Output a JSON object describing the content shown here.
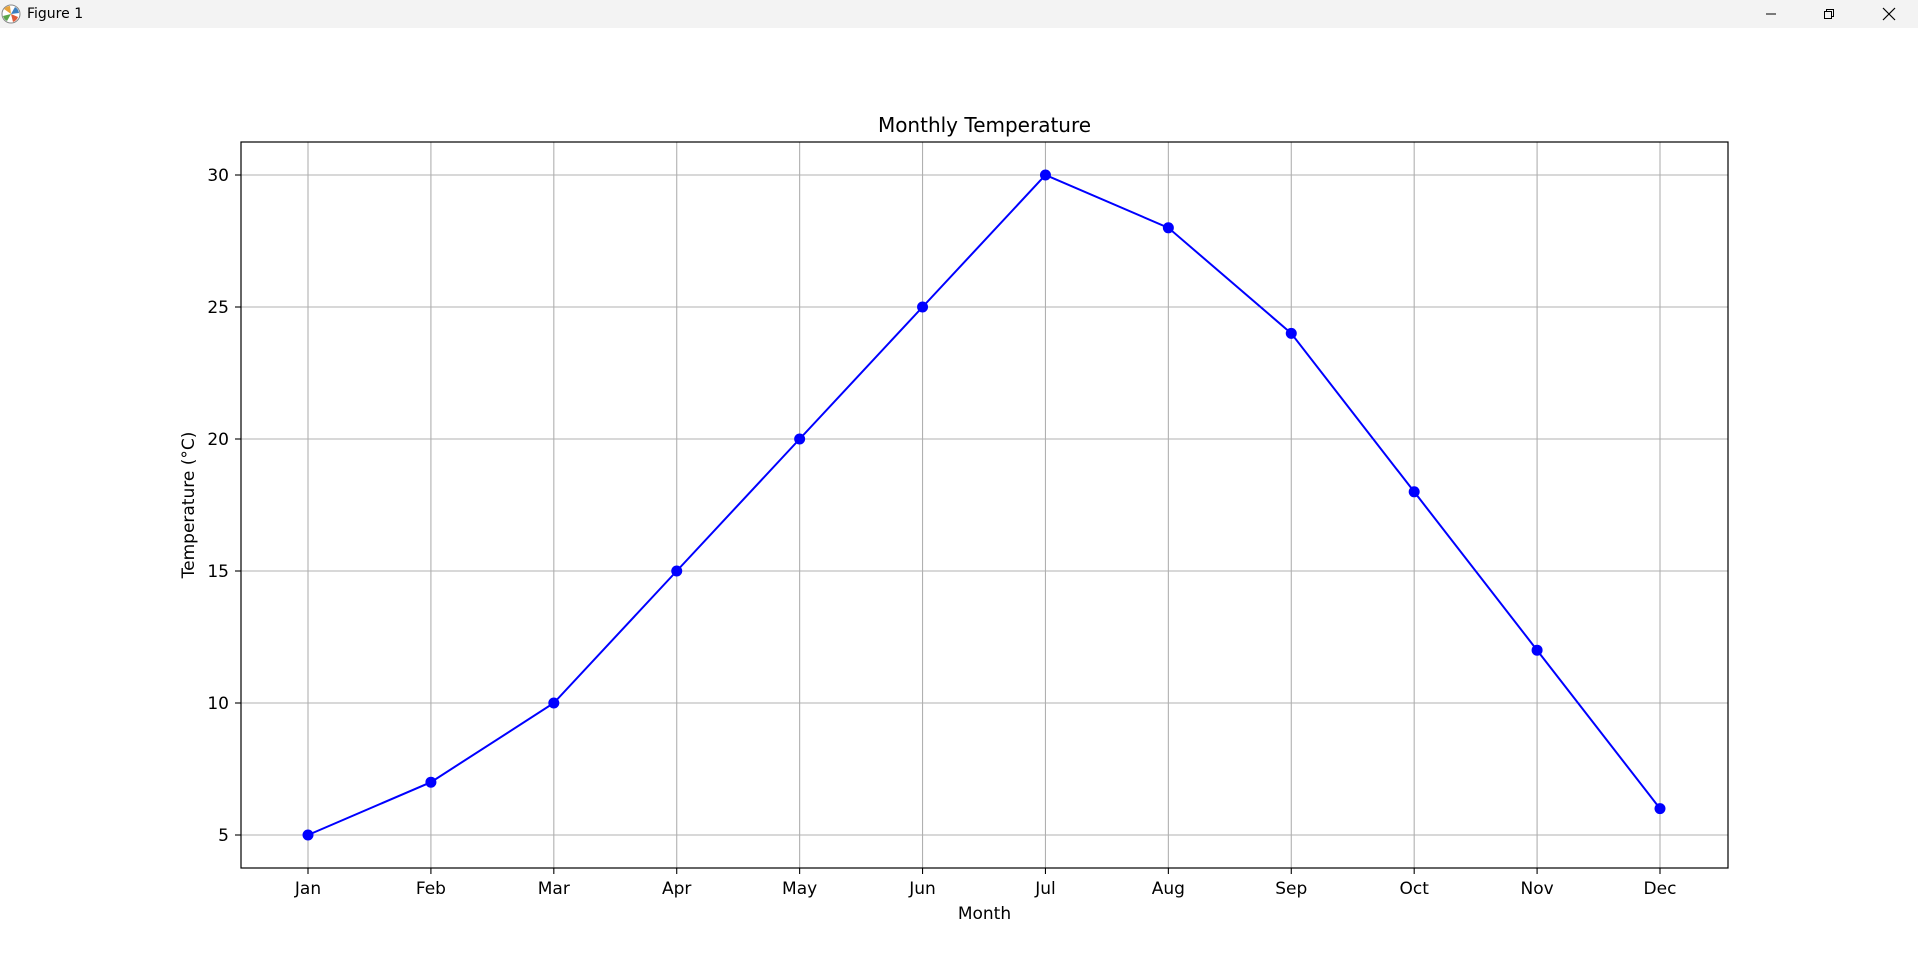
{
  "window": {
    "title": "Figure 1",
    "controls": {
      "minimize_icon": "minimize-icon",
      "maximize_icon": "restore-icon",
      "close_icon": "close-icon"
    }
  },
  "chart_data": {
    "type": "line",
    "title": "Monthly Temperature",
    "xlabel": "Month",
    "ylabel": "Temperature (°C)",
    "categories": [
      "Jan",
      "Feb",
      "Mar",
      "Apr",
      "May",
      "Jun",
      "Jul",
      "Aug",
      "Sep",
      "Oct",
      "Nov",
      "Dec"
    ],
    "series": [
      {
        "values": [
          5,
          7,
          10,
          15,
          20,
          25,
          30,
          28,
          24,
          18,
          12,
          6
        ],
        "color": "#0000ff",
        "marker": "circle"
      }
    ],
    "ylim": [
      3.75,
      31.25
    ],
    "yticks": [
      5,
      10,
      15,
      20,
      25,
      30
    ],
    "grid": true,
    "legend": "none"
  }
}
